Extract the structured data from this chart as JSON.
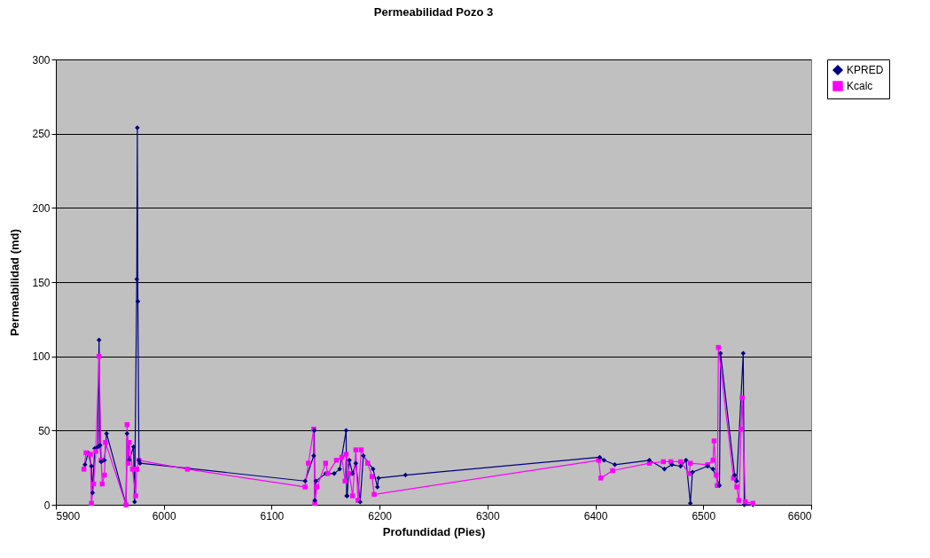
{
  "chart_data": {
    "type": "line",
    "title": "Permeabilidad Pozo 3",
    "xlabel": "Profundidad (Pies)",
    "ylabel": "Permeabilidad (md)",
    "xlim": [
      5900,
      6600
    ],
    "xticks": [
      5900,
      6000,
      6100,
      6200,
      6300,
      6400,
      6500,
      6600
    ],
    "ylim": [
      0,
      300
    ],
    "yticks": [
      0,
      50,
      100,
      150,
      200,
      250,
      300
    ],
    "grid": "y",
    "legend": "right",
    "line_style": "solid",
    "series": [
      {
        "name": "KPRED",
        "color": "#000080",
        "marker": "diamond",
        "x": [
          5927,
          5930,
          5933,
          5934,
          5936,
          5939,
          5940,
          5941,
          5942,
          5945,
          5947,
          5965,
          5966,
          5968,
          5972,
          5973,
          5975,
          5975.5,
          5976,
          5977,
          5978,
          6131,
          6139,
          6139.5,
          6140,
          6141,
          6150,
          6158,
          6163,
          6169,
          6169.5,
          6170,
          6172,
          6175,
          6178,
          6182,
          6185,
          6194,
          6198,
          6199,
          6224,
          6404,
          6408,
          6418,
          6450,
          6464,
          6471,
          6479,
          6484,
          6488,
          6490,
          6504,
          6509,
          6515,
          6516,
          6529,
          6531,
          6537,
          6538,
          6546
        ],
        "values": [
          27,
          35,
          26,
          8,
          38,
          39,
          111,
          40,
          29,
          30,
          48,
          0,
          48,
          30,
          39,
          2,
          152,
          254,
          137,
          30,
          28,
          16,
          33,
          50,
          3,
          16,
          21,
          21,
          24,
          50,
          6,
          6,
          30,
          21,
          28,
          2,
          33,
          24,
          12,
          18,
          20,
          32,
          30,
          27,
          30,
          24,
          27,
          26,
          30,
          1,
          22,
          26,
          24,
          13,
          102,
          20,
          16,
          102,
          0,
          0
        ]
      },
      {
        "name": "Kcalc",
        "color": "#ff00ff",
        "marker": "square",
        "x": [
          5926,
          5928,
          5932,
          5933,
          5935,
          5937,
          5940,
          5942,
          5943,
          5945,
          5946,
          5965,
          5966,
          5967,
          5968,
          5971,
          5974,
          5975,
          5977,
          6022,
          6131,
          6134,
          6139,
          6140,
          6142,
          6150,
          6152,
          6160,
          6165,
          6168,
          6169,
          6172,
          6175,
          6178,
          6180,
          6183,
          6189,
          6193,
          6195,
          6403,
          6405,
          6416,
          6450,
          6463,
          6470,
          6479,
          6487,
          6488,
          6504,
          6509,
          6510,
          6512,
          6513,
          6514,
          6528,
          6531,
          6533,
          6535,
          6536,
          6539,
          6546
        ],
        "values": [
          24,
          35,
          34,
          1,
          14,
          36,
          100,
          30,
          14,
          20,
          42,
          0,
          54,
          28,
          42,
          24,
          6,
          24,
          30,
          24,
          12,
          28,
          51,
          1,
          12,
          28,
          21,
          30,
          32,
          16,
          34,
          21,
          6,
          37,
          3,
          37,
          28,
          19,
          7,
          30,
          18,
          23,
          28,
          29,
          29,
          29,
          21,
          28,
          27,
          30,
          43,
          20,
          13,
          106,
          18,
          12,
          3,
          51,
          72,
          2,
          1
        ]
      }
    ]
  }
}
